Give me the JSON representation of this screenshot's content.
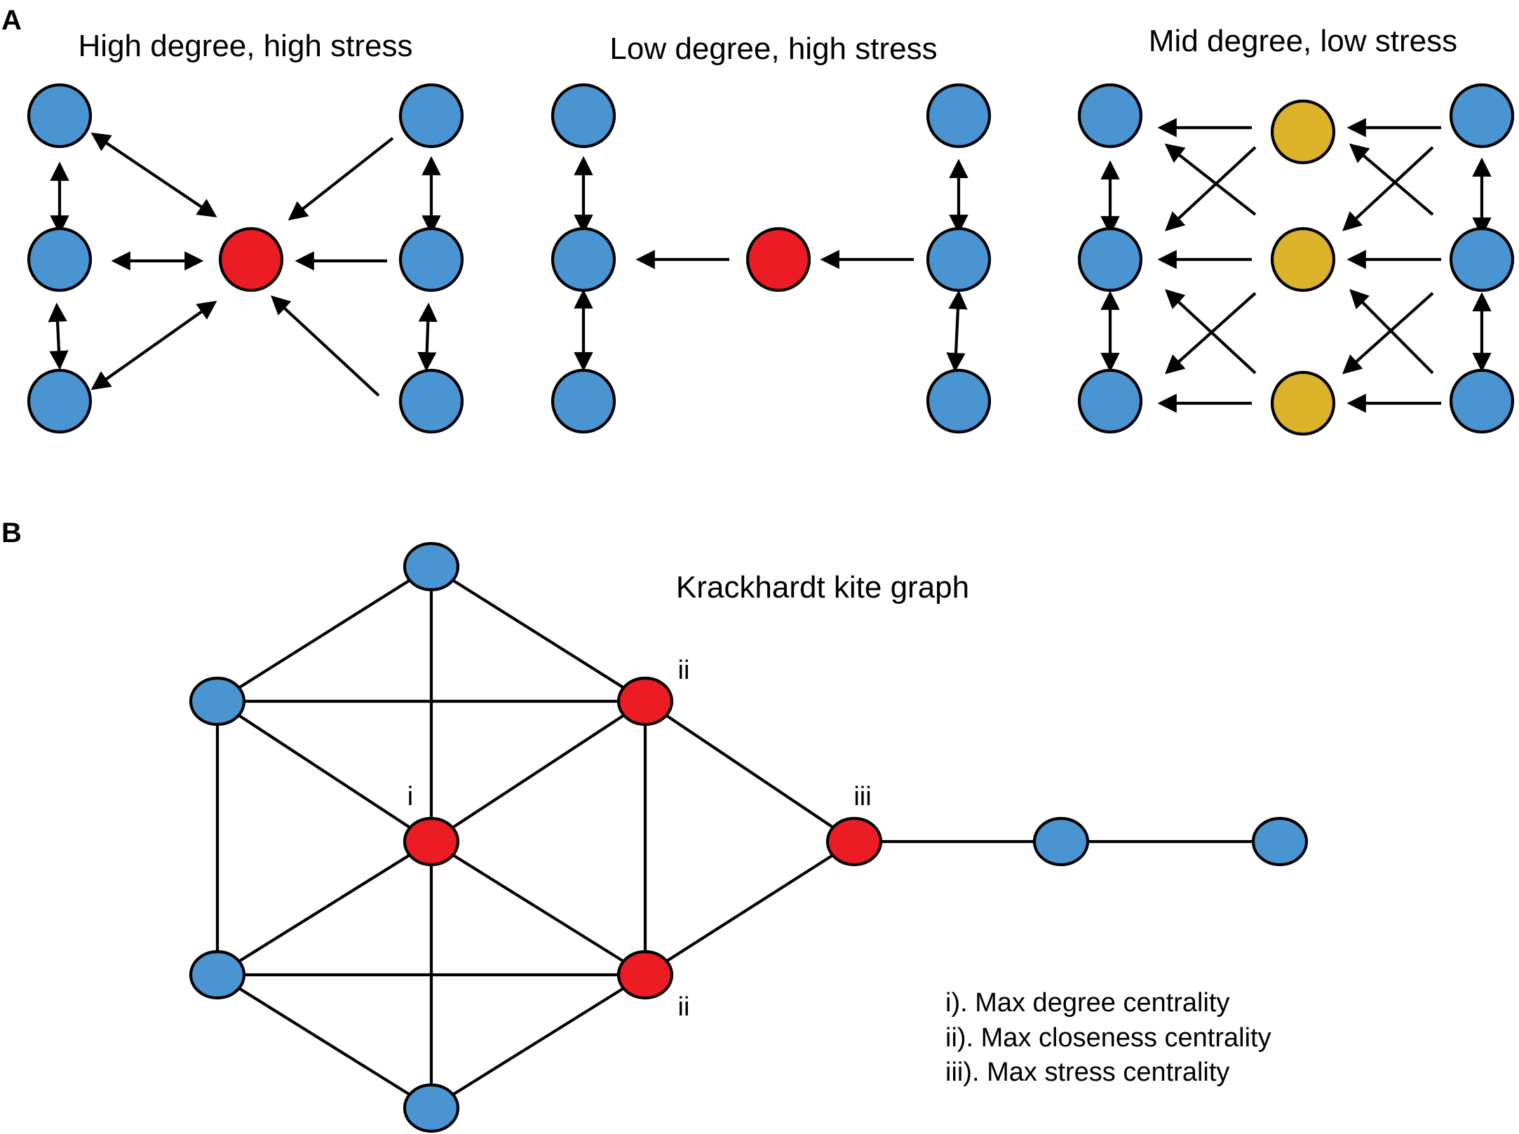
{
  "panel_a": {
    "label": "A",
    "titles": [
      "High degree, high stress",
      "Low degree, high stress",
      "Mid degree, low stress"
    ]
  },
  "panel_b": {
    "label": "B",
    "title": "Krackhardt kite graph",
    "node_tags": {
      "i": "i",
      "ii_top": "ii",
      "ii_bottom": "ii",
      "iii": "iii"
    },
    "legend": [
      "i). Max degree centrality",
      "ii). Max closeness centrality",
      "iii). Max stress centrality"
    ]
  },
  "colors": {
    "ordinary_node": "#4a94d2",
    "highlight_node": "#ec1c24",
    "intermediate_node": "#dcb22a",
    "edge": "#000000"
  }
}
